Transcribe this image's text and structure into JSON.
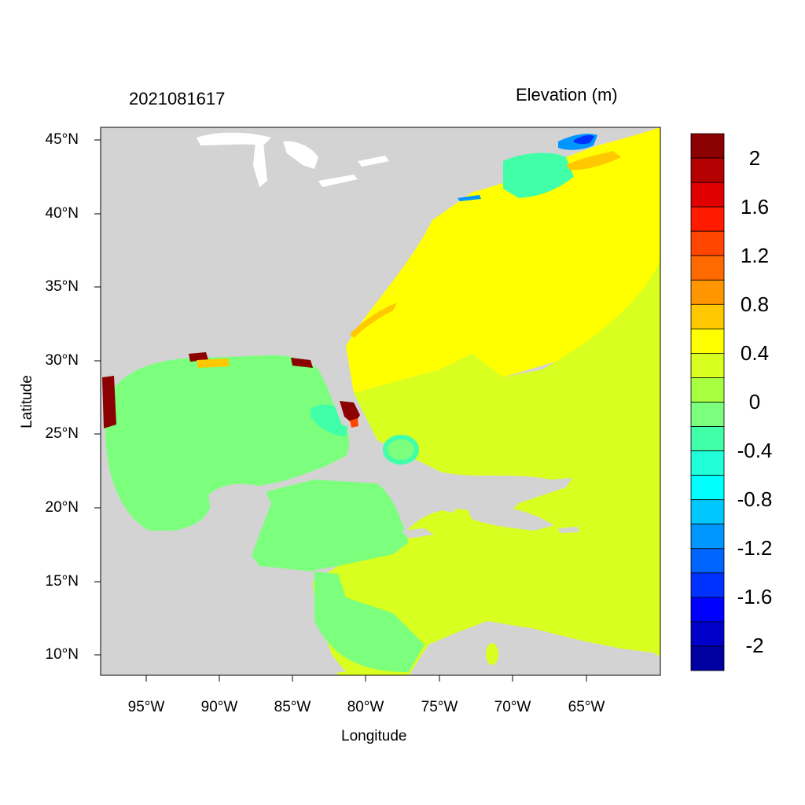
{
  "title_left": "2021081617",
  "title_right": "Elevation (m)",
  "x_axis_label": "Longitude",
  "y_axis_label": "Latitude",
  "lon_ticks": [
    "95°W",
    "90°W",
    "85°W",
    "80°W",
    "75°W",
    "70°W",
    "65°W"
  ],
  "lat_ticks": [
    "45°N",
    "40°N",
    "35°N",
    "30°N",
    "25°N",
    "20°N",
    "15°N",
    "10°N"
  ],
  "colorbar": {
    "labels": [
      "2",
      "1.6",
      "1.2",
      "0.8",
      "0.4",
      "0",
      "-0.4",
      "-0.8",
      "-1.2",
      "-1.6",
      "-2"
    ],
    "colors_top_to_bottom": [
      "#8b0000",
      "#b40000",
      "#e00000",
      "#ff1a00",
      "#ff4500",
      "#ff6a00",
      "#ff9600",
      "#ffc800",
      "#ffff00",
      "#d8ff20",
      "#a8ff40",
      "#7cff7c",
      "#40ffa8",
      "#20ffd8",
      "#00ffff",
      "#00c8ff",
      "#0096ff",
      "#0064ff",
      "#0032ff",
      "#0000ff",
      "#0000c8",
      "#0000a0"
    ]
  },
  "colors": {
    "land": "#d3d3d3",
    "ocean_high": "#ffff00",
    "ocean_mid": "#d8ff20",
    "ocean_low": "#7cff7c",
    "surge": "#8b0000"
  }
}
